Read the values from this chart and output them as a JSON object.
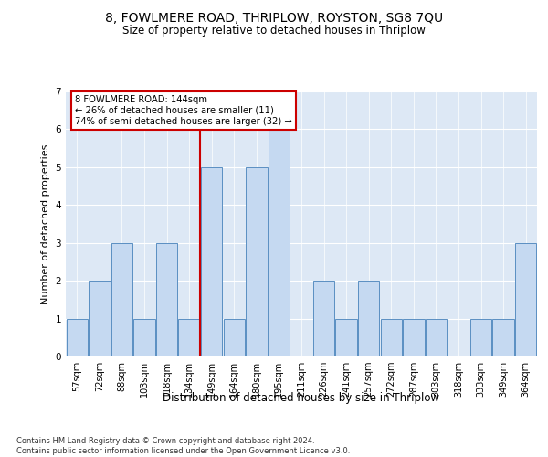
{
  "title": "8, FOWLMERE ROAD, THRIPLOW, ROYSTON, SG8 7QU",
  "subtitle": "Size of property relative to detached houses in Thriplow",
  "xlabel": "Distribution of detached houses by size in Thriplow",
  "ylabel": "Number of detached properties",
  "bins": [
    "57sqm",
    "72sqm",
    "88sqm",
    "103sqm",
    "118sqm",
    "134sqm",
    "149sqm",
    "164sqm",
    "180sqm",
    "195sqm",
    "211sqm",
    "226sqm",
    "241sqm",
    "257sqm",
    "272sqm",
    "287sqm",
    "303sqm",
    "318sqm",
    "333sqm",
    "349sqm",
    "364sqm"
  ],
  "values": [
    1,
    2,
    3,
    1,
    3,
    1,
    5,
    1,
    5,
    6,
    0,
    2,
    1,
    2,
    1,
    1,
    1,
    0,
    1,
    1,
    3
  ],
  "highlight_label": "8 FOWLMERE ROAD: 144sqm",
  "pct_smaller": 26,
  "n_smaller": 11,
  "pct_larger_semi": 74,
  "n_larger_semi": 32,
  "bar_color": "#c5d9f1",
  "bar_edge_color": "#5a8fc2",
  "highlight_line_color": "#cc0000",
  "box_edge_color": "#cc0000",
  "ylim": [
    0,
    7
  ],
  "yticks": [
    0,
    1,
    2,
    3,
    4,
    5,
    6,
    7
  ],
  "bg_color": "#dde8f5",
  "footer": "Contains HM Land Registry data © Crown copyright and database right 2024.\nContains public sector information licensed under the Open Government Licence v3.0."
}
